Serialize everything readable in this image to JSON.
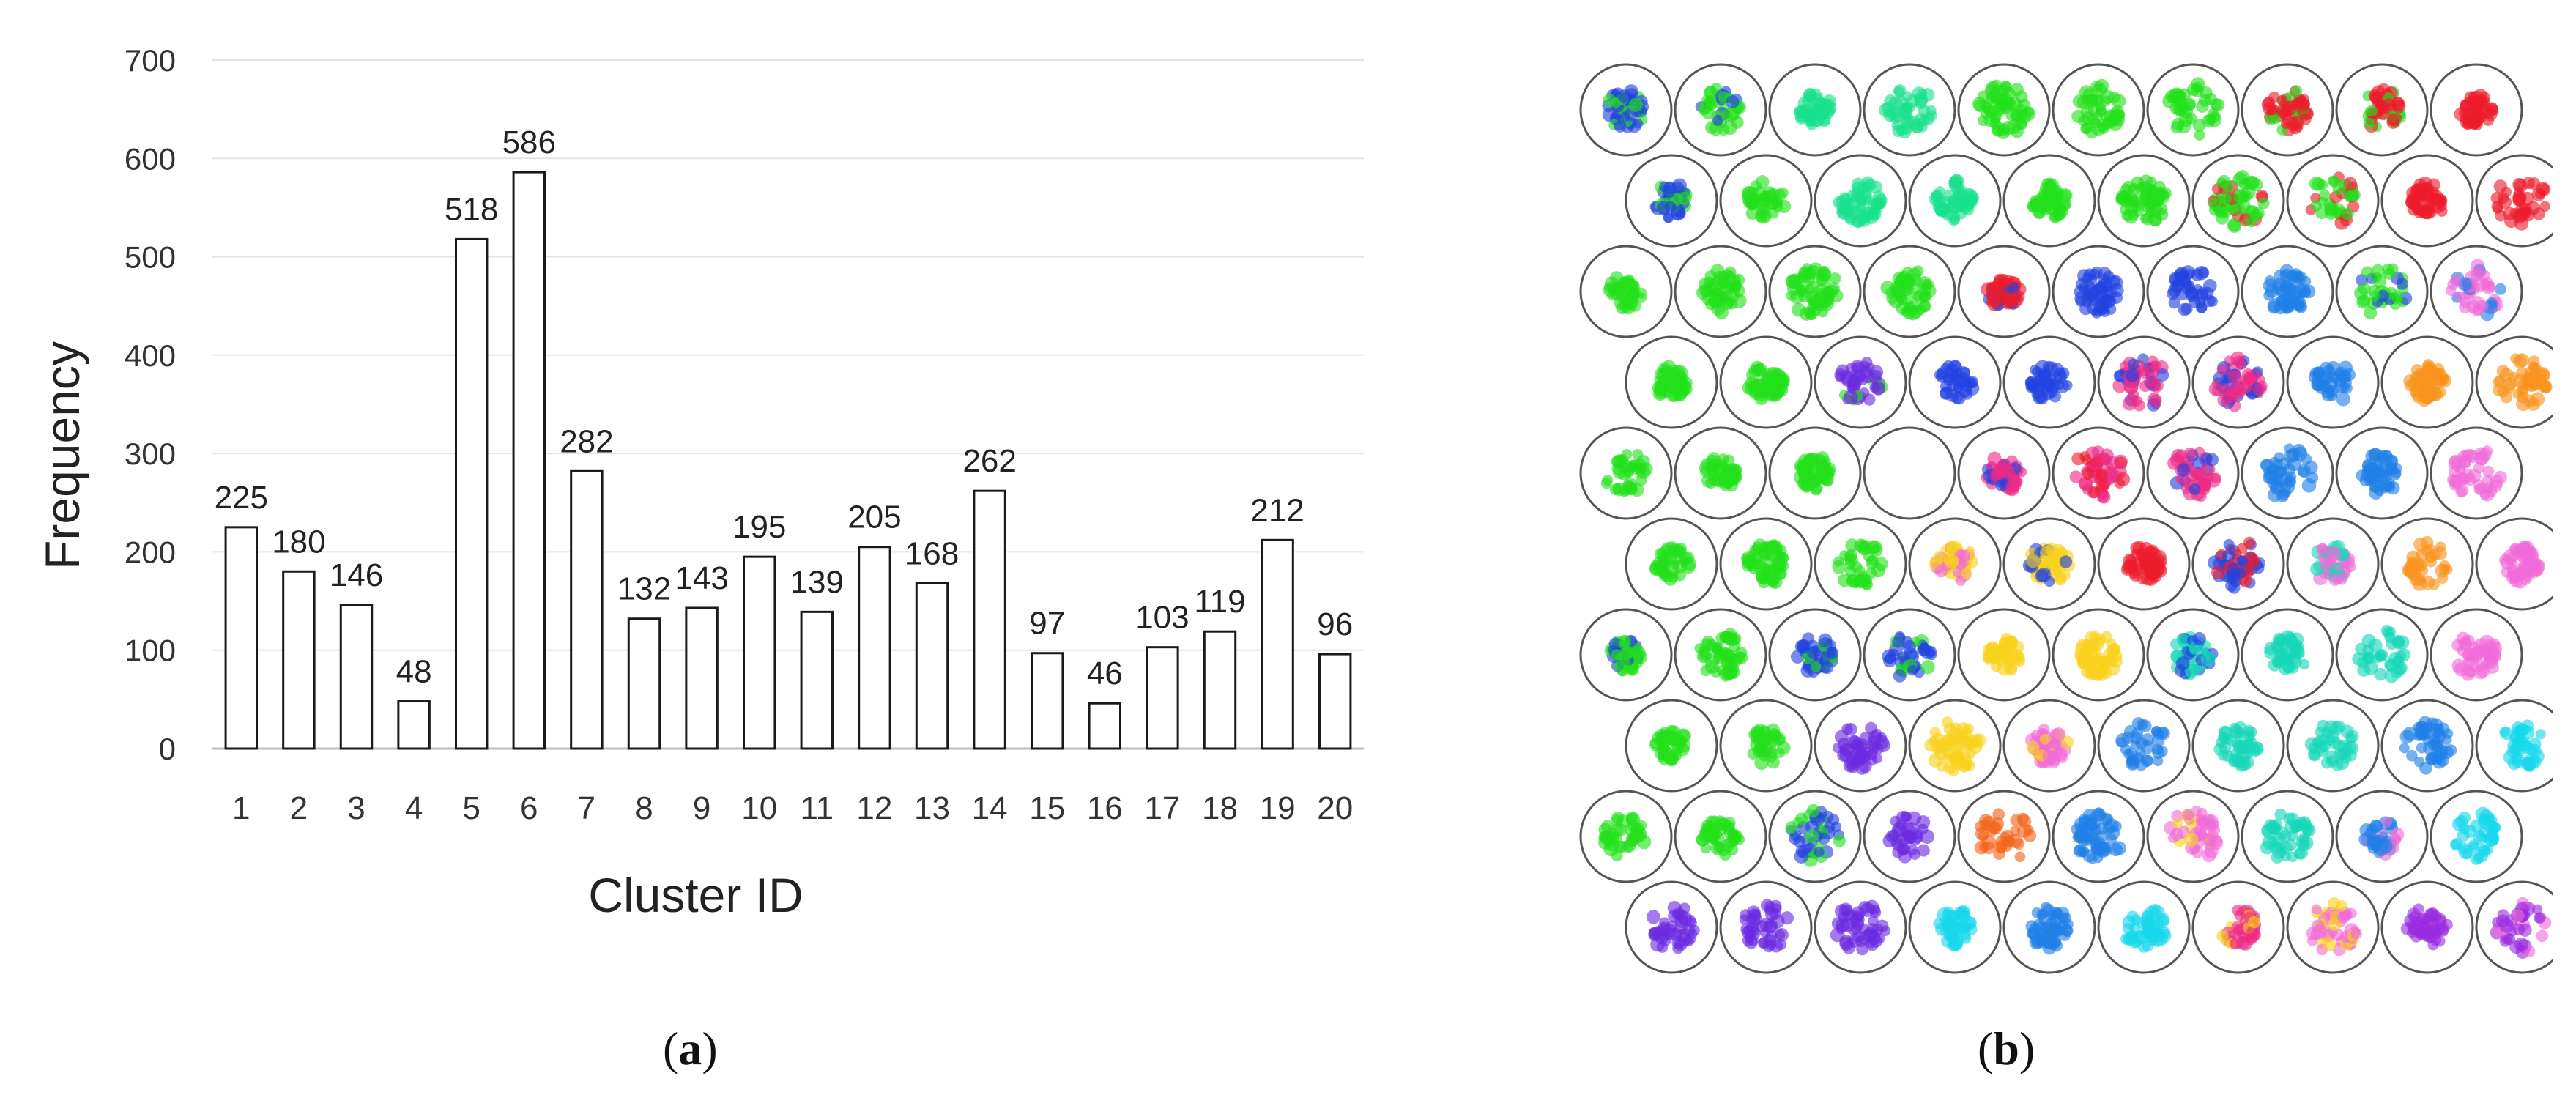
{
  "chart_data": {
    "type": "bar",
    "title": "",
    "xlabel": "Cluster ID",
    "ylabel": "Frequency",
    "ylim": [
      0,
      700
    ],
    "yticks": [
      0,
      100,
      200,
      300,
      400,
      500,
      600,
      700
    ],
    "categories": [
      "1",
      "2",
      "3",
      "4",
      "5",
      "6",
      "7",
      "8",
      "9",
      "10",
      "11",
      "12",
      "13",
      "14",
      "15",
      "16",
      "17",
      "18",
      "19",
      "20"
    ],
    "values": [
      225,
      180,
      146,
      48,
      518,
      586,
      282,
      132,
      143,
      195,
      139,
      205,
      168,
      262,
      97,
      46,
      103,
      119,
      212,
      96
    ],
    "data_labels": [
      "225",
      "180",
      "146",
      "48",
      "518",
      "586",
      "282",
      "132",
      "143",
      "195",
      "139",
      "205",
      "168",
      "262",
      "97",
      "46",
      "103",
      "119",
      "212",
      "96"
    ],
    "grid": true
  },
  "captions": {
    "a_open": "(",
    "a_letter": "a",
    "a_close": ")",
    "b_open": "(",
    "b_letter": "b",
    "b_close": ")"
  },
  "som_grid": {
    "rows": 10,
    "cols": 10,
    "empty_cell": {
      "row": 4,
      "col": 3
    },
    "palette": {
      "green": "#22e01a",
      "mint": "#19e08a",
      "teal": "#16d6b8",
      "red": "#ee1c2c",
      "blue": "#2242e0",
      "azure": "#1e7fe6",
      "magenta": "#ee2a86",
      "orange": "#f8931c",
      "yellow": "#f8d21c",
      "violet": "#6a2ae0",
      "cyan": "#16d6ec",
      "pink": "#f06ad8",
      "darkorange": "#f2641a",
      "purple": "#9a2ae0"
    },
    "cells": [
      [
        "blue",
        "green",
        "mint",
        "mint",
        "green",
        "green",
        "green",
        "red",
        "red",
        "red"
      ],
      [
        "blue",
        "green",
        "mint",
        "mint",
        "green",
        "green",
        "green",
        "green",
        "red",
        "red"
      ],
      [
        "green",
        "green",
        "green",
        "green",
        "red",
        "blue",
        "blue",
        "azure",
        "green",
        "pink"
      ],
      [
        "green",
        "green",
        "violet",
        "blue",
        "blue",
        "magenta",
        "magenta",
        "azure",
        "orange",
        "orange"
      ],
      [
        "green",
        "green",
        "green",
        "",
        "magenta",
        "magenta",
        "magenta",
        "azure",
        "azure",
        "pink"
      ],
      [
        "green",
        "green",
        "green",
        "yellow",
        "yellow",
        "red",
        "blue",
        "pink",
        "orange",
        "pink"
      ],
      [
        "green",
        "green",
        "blue",
        "blue",
        "yellow",
        "yellow",
        "teal",
        "teal",
        "teal",
        "pink"
      ],
      [
        "green",
        "green",
        "violet",
        "yellow",
        "pink",
        "azure",
        "teal",
        "teal",
        "azure",
        "cyan"
      ],
      [
        "green",
        "green",
        "blue",
        "violet",
        "darkorange",
        "azure",
        "pink",
        "teal",
        "azure",
        "cyan"
      ],
      [
        "violet",
        "violet",
        "violet",
        "cyan",
        "azure",
        "cyan",
        "magenta",
        "pink",
        "purple",
        "purple"
      ]
    ],
    "secondary": [
      [
        "green",
        "blue",
        "",
        "",
        "",
        "",
        "",
        "green",
        "green",
        ""
      ],
      [
        "green",
        "",
        "",
        "",
        "",
        "",
        "red",
        "red",
        "",
        ""
      ],
      [
        "",
        "",
        "",
        "",
        "blue",
        "",
        "",
        "",
        "blue",
        "azure"
      ],
      [
        "",
        "",
        "green",
        "",
        "",
        "blue",
        "blue",
        "",
        "",
        ""
      ],
      [
        "",
        "",
        "",
        "",
        "blue",
        "red",
        "blue",
        "",
        "",
        ""
      ],
      [
        "",
        "",
        "",
        "pink",
        "blue",
        "",
        "red",
        "teal",
        "",
        ""
      ],
      [
        "blue",
        "",
        "green",
        "green",
        "",
        "",
        "blue",
        "",
        "",
        ""
      ],
      [
        "",
        "",
        "",
        "",
        "yellow",
        "",
        "",
        "",
        "",
        ""
      ],
      [
        "",
        "",
        "green",
        "",
        "",
        "",
        "yellow",
        "",
        "pink",
        ""
      ],
      [
        "",
        "",
        "",
        "",
        "",
        "",
        "yellow",
        "yellow",
        "",
        "pink"
      ]
    ]
  }
}
